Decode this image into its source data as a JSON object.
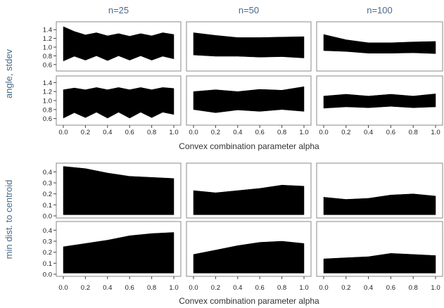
{
  "chart_data": {
    "type": "area",
    "column_titles": [
      "n=25",
      "n=50",
      "n=100"
    ],
    "blocks": [
      {
        "ylabel": "angle, stdev",
        "xlabel": "Convex combination parameter alpha",
        "y_ticks_top": [
          "0.6",
          "0.8",
          "1.0",
          "1.2",
          "1.4"
        ],
        "y_ticks_bottom": [
          "0.6",
          "0.8",
          "1.0",
          "1.2",
          "1.4"
        ],
        "x_ticks": [
          "0.0",
          "0.2",
          "0.4",
          "0.6",
          "0.8",
          "1.0"
        ],
        "xlim": [
          0,
          1
        ],
        "ylim": [
          0.5,
          1.5
        ],
        "panels": [
          [
            {
              "x": [
                0,
                0.1,
                0.2,
                0.3,
                0.4,
                0.5,
                0.6,
                0.7,
                0.8,
                0.9,
                1.0
              ],
              "upper": [
                1.47,
                1.36,
                1.28,
                1.33,
                1.26,
                1.31,
                1.25,
                1.31,
                1.26,
                1.33,
                1.29
              ],
              "lower": [
                0.68,
                0.79,
                0.7,
                0.8,
                0.69,
                0.8,
                0.7,
                0.8,
                0.7,
                0.79,
                0.73
              ]
            },
            {
              "x": [
                0,
                0.2,
                0.4,
                0.6,
                0.8,
                1.0
              ],
              "upper": [
                1.33,
                1.27,
                1.22,
                1.22,
                1.23,
                1.24
              ],
              "lower": [
                0.82,
                0.79,
                0.79,
                0.77,
                0.78,
                0.75
              ]
            },
            {
              "x": [
                0,
                0.2,
                0.4,
                0.6,
                0.8,
                1.0
              ],
              "upper": [
                1.29,
                1.17,
                1.1,
                1.1,
                1.12,
                1.13
              ],
              "lower": [
                0.92,
                0.9,
                0.86,
                0.86,
                0.87,
                0.85
              ]
            }
          ],
          [
            {
              "x": [
                0,
                0.1,
                0.2,
                0.3,
                0.4,
                0.5,
                0.6,
                0.7,
                0.8,
                0.9,
                1.0
              ],
              "upper": [
                1.24,
                1.28,
                1.24,
                1.29,
                1.24,
                1.29,
                1.24,
                1.29,
                1.24,
                1.29,
                1.27
              ],
              "lower": [
                0.61,
                0.73,
                0.62,
                0.74,
                0.61,
                0.74,
                0.61,
                0.74,
                0.62,
                0.74,
                0.69
              ]
            },
            {
              "x": [
                0,
                0.2,
                0.4,
                0.6,
                0.8,
                1.0
              ],
              "upper": [
                1.2,
                1.24,
                1.2,
                1.25,
                1.23,
                1.31
              ],
              "lower": [
                0.8,
                0.73,
                0.79,
                0.76,
                0.8,
                0.76
              ]
            },
            {
              "x": [
                0,
                0.2,
                0.4,
                0.6,
                0.8,
                1.0
              ],
              "upper": [
                1.1,
                1.14,
                1.1,
                1.14,
                1.1,
                1.15
              ],
              "lower": [
                0.83,
                0.86,
                0.84,
                0.87,
                0.84,
                0.86
              ]
            }
          ]
        ]
      },
      {
        "ylabel": "min dist. to centroid",
        "xlabel": "Convex combination parameter alpha",
        "y_ticks_top": [
          "0.0",
          "0.1",
          "0.2",
          "0.3",
          "0.4"
        ],
        "y_ticks_bottom": [
          "0.0",
          "0.1",
          "0.2",
          "0.3",
          "0.4"
        ],
        "x_ticks": [
          "0.0",
          "0.2",
          "0.4",
          "0.6",
          "0.8",
          "1.0"
        ],
        "xlim": [
          0,
          1
        ],
        "ylim": [
          0,
          0.46
        ],
        "panels": [
          [
            {
              "x": [
                0,
                0.2,
                0.4,
                0.6,
                0.8,
                1.0
              ],
              "upper": [
                0.45,
                0.43,
                0.39,
                0.36,
                0.35,
                0.34
              ],
              "lower": [
                0.01,
                0.01,
                0.01,
                0.01,
                0.01,
                0.01
              ]
            },
            {
              "x": [
                0,
                0.2,
                0.4,
                0.6,
                0.8,
                1.0
              ],
              "upper": [
                0.23,
                0.21,
                0.23,
                0.25,
                0.28,
                0.27
              ],
              "lower": [
                0.01,
                0.01,
                0.01,
                0.01,
                0.01,
                0.01
              ]
            },
            {
              "x": [
                0,
                0.2,
                0.4,
                0.6,
                0.8,
                1.0
              ],
              "upper": [
                0.17,
                0.15,
                0.16,
                0.19,
                0.2,
                0.18
              ],
              "lower": [
                0.01,
                0.01,
                0.01,
                0.01,
                0.01,
                0.01
              ]
            }
          ],
          [
            {
              "x": [
                0,
                0.2,
                0.4,
                0.6,
                0.8,
                1.0
              ],
              "upper": [
                0.25,
                0.28,
                0.31,
                0.35,
                0.37,
                0.38
              ],
              "lower": [
                0.01,
                0.01,
                0.01,
                0.01,
                0.01,
                0.01
              ]
            },
            {
              "x": [
                0,
                0.2,
                0.4,
                0.6,
                0.8,
                1.0
              ],
              "upper": [
                0.18,
                0.22,
                0.26,
                0.29,
                0.3,
                0.28
              ],
              "lower": [
                0.01,
                0.01,
                0.01,
                0.01,
                0.01,
                0.01
              ]
            },
            {
              "x": [
                0,
                0.2,
                0.4,
                0.6,
                0.8,
                1.0
              ],
              "upper": [
                0.14,
                0.15,
                0.16,
                0.19,
                0.18,
                0.17
              ],
              "lower": [
                0.01,
                0.01,
                0.01,
                0.01,
                0.01,
                0.01
              ]
            }
          ]
        ]
      }
    ],
    "colors": {
      "fill": "#000000",
      "frame": "#888888",
      "title": "#4a6a8a"
    }
  }
}
